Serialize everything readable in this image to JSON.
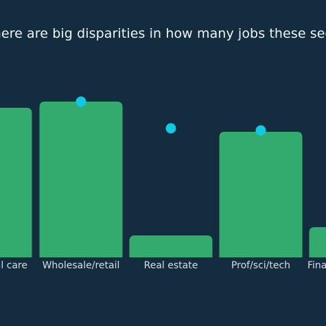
{
  "chart_data": {
    "type": "bar",
    "title": "There are big disparities in how many jobs these sectors",
    "categories": [
      "Medical care",
      "Wholesale/retail",
      "Real estate",
      "Prof/sci/tech",
      "Finance"
    ],
    "category_labels_visible": [
      "al care",
      "Wholesale/retail",
      "Real estate",
      "Prof/sci/tech",
      "Fina"
    ],
    "series": [
      {
        "type": "bar",
        "values": [
          218,
          227,
          32,
          183,
          44
        ]
      },
      {
        "type": "dot",
        "values": [
          null,
          227,
          188,
          185,
          null
        ]
      }
    ],
    "ylim": [
      0,
      260
    ],
    "grid": false,
    "legend": "none"
  },
  "colors": {
    "background": "#132c3f",
    "bar": "#34ab6e",
    "dot": "#14c8e4",
    "text": "#f2f4f5",
    "tick_text": "#d7dde2"
  }
}
